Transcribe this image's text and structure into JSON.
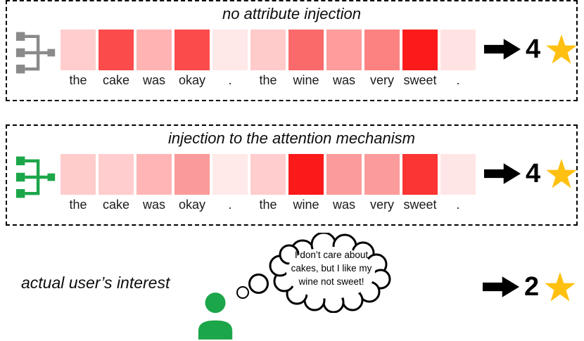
{
  "figure": {
    "panels": [
      {
        "id": "no-injection",
        "title": "no attribute injection",
        "icon": "model-tree-icon-gray",
        "icon_color": "#8a8a8a",
        "words": [
          "the",
          "cake",
          "was",
          "okay",
          ".",
          "the",
          "wine",
          "was",
          "very",
          "sweet",
          "."
        ],
        "heat_colors": [
          "#FFCDCD",
          "#FB4B4B",
          "#FFB3B3",
          "#FB4B4B",
          "#FFE8E8",
          "#FFCACA",
          "#FB6A6A",
          "#FF9C9C",
          "#FC8282",
          "#FB1B1B",
          "#FFE3E3"
        ],
        "attention_intensity_0to1_estimated": [
          0.2,
          0.72,
          0.3,
          0.72,
          0.07,
          0.2,
          0.6,
          0.4,
          0.5,
          0.92,
          0.1
        ],
        "rating": "4"
      },
      {
        "id": "attention-injection",
        "title": "injection to the attention mechanism",
        "icon": "model-tree-icon-green",
        "icon_color": "#1CA64A",
        "words": [
          "the",
          "cake",
          "was",
          "okay",
          ".",
          "the",
          "wine",
          "was",
          "very",
          "sweet",
          "."
        ],
        "heat_colors": [
          "#FFCCCC",
          "#FFCDCD",
          "#FFB5B5",
          "#FB9A9A",
          "#FFE9E9",
          "#FFCDCD",
          "#FA1A1A",
          "#FC9B9B",
          "#FC9B9B",
          "#FB3434",
          "#FFE6E6"
        ],
        "attention_intensity_0to1_estimated": [
          0.2,
          0.2,
          0.3,
          0.4,
          0.07,
          0.2,
          0.92,
          0.4,
          0.4,
          0.8,
          0.1
        ],
        "rating": "4"
      }
    ],
    "bottom": {
      "label": "actual user’s interest",
      "person_icon": "user-person-icon",
      "thought_lines": [
        "I don’t care about",
        "cakes, but I like my",
        "wine not sweet!"
      ],
      "rating": "2"
    },
    "colors": {
      "star": "#FFC011",
      "arrow": "#000000",
      "icon_gray": "#8a8a8a",
      "icon_green": "#1CA64A",
      "person_green": "#1CA64A"
    }
  }
}
